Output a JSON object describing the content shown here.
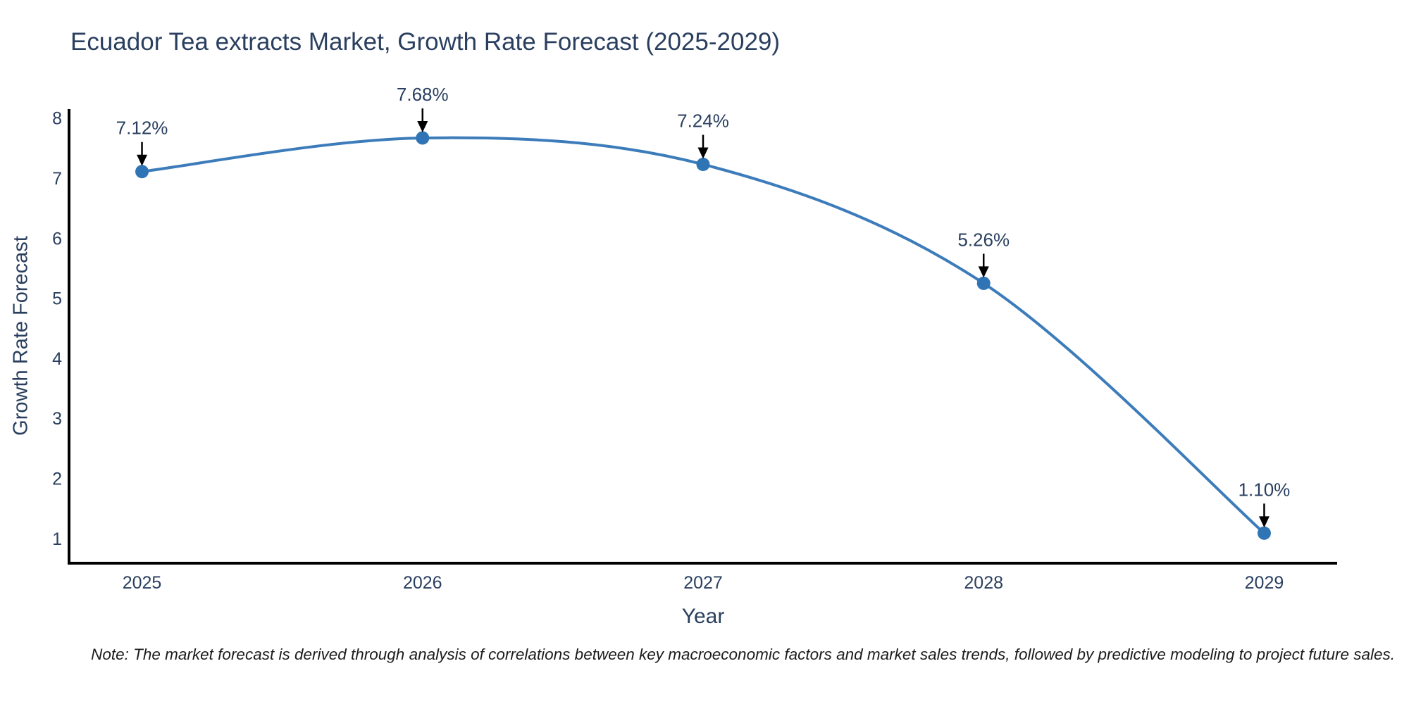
{
  "page": {
    "background_color": "#ffffff"
  },
  "note": {
    "text": "Note: The market forecast is derived through analysis of correlations between key macroeconomic factors and market sales trends, followed by predictive modeling to project future sales."
  },
  "chart_data": {
    "type": "line",
    "line_shape": "spline",
    "title": "Ecuador Tea extracts Market, Growth Rate Forecast (2025-2029)",
    "xlabel": "Year",
    "ylabel": "Growth Rate Forecast",
    "x": [
      2025,
      2026,
      2027,
      2028,
      2029
    ],
    "xticks": [
      "2025",
      "2026",
      "2027",
      "2028",
      "2029"
    ],
    "values": [
      7.12,
      7.68,
      7.24,
      5.26,
      1.1
    ],
    "point_labels": [
      "7.12%",
      "7.68%",
      "7.24%",
      "5.26%",
      "1.10%"
    ],
    "yticks": [
      1,
      2,
      3,
      4,
      5,
      6,
      7,
      8
    ],
    "xlim": [
      2024.74,
      2029.26
    ],
    "ylim": [
      0.6,
      8.16
    ],
    "grid": false,
    "legend": "none",
    "colors": {
      "line": "#3d7cba",
      "marker": "#2f74b5",
      "axis": "#000000",
      "tick_text": "#2a3f5f",
      "annotation_text": "#2a3f5f",
      "annotation_arrow": "#000000",
      "title_text": "#2a3f5f"
    }
  }
}
